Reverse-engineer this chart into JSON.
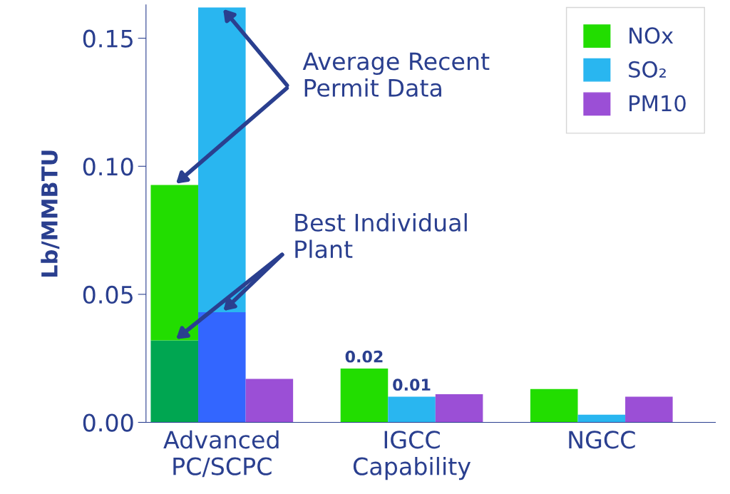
{
  "chart_data": {
    "type": "bar",
    "ylabel": "Lb/MMBTU",
    "stacked": true,
    "categories": [
      null,
      "Advanced\nPC/SCPC",
      null,
      null,
      null,
      "IGCC\nCapability",
      null,
      null,
      null,
      "NGCC",
      null,
      null
    ],
    "series": [
      {
        "color": "#00a651",
        "values": [
          0.032,
          null,
          null,
          null,
          null,
          null,
          null,
          null,
          null,
          null,
          null,
          null
        ]
      },
      {
        "name": "NOx",
        "color": "#22dd00",
        "values": [
          0.0607,
          null,
          null,
          null,
          0.021,
          null,
          null,
          null,
          0.013,
          null,
          null,
          null
        ],
        "value_labels": [
          null,
          null,
          null,
          null,
          "0.02",
          null,
          null,
          null,
          null,
          null,
          null,
          null
        ]
      },
      {
        "color": "#3366ff",
        "values": [
          null,
          0.043,
          null,
          null,
          null,
          null,
          null,
          null,
          null,
          null,
          null,
          null
        ]
      },
      {
        "name": "SO₂",
        "color": "#29b6f0",
        "values": [
          null,
          0.119,
          null,
          null,
          null,
          0.01,
          null,
          null,
          null,
          0.003,
          null,
          null
        ],
        "value_labels": [
          null,
          null,
          null,
          null,
          null,
          "0.01",
          null,
          null,
          null,
          null,
          null,
          null
        ]
      },
      {
        "name": "PM10",
        "color": "#9b4fd6",
        "values": [
          null,
          null,
          0.017,
          null,
          null,
          null,
          0.011,
          null,
          null,
          null,
          0.01,
          null
        ]
      }
    ],
    "ylim": [
      0,
      0.163
    ],
    "yticks": [
      {
        "value": 0,
        "label": "0.00"
      },
      {
        "value": 0.05,
        "label": "0.05"
      },
      {
        "value": 0.1,
        "label": "0.10"
      },
      {
        "value": 0.15,
        "label": "0.15"
      }
    ],
    "annotations": [
      "Average Recent\nPermit Data",
      "Best Individual\nPlant"
    ],
    "legend": "top right",
    "grid": false
  }
}
